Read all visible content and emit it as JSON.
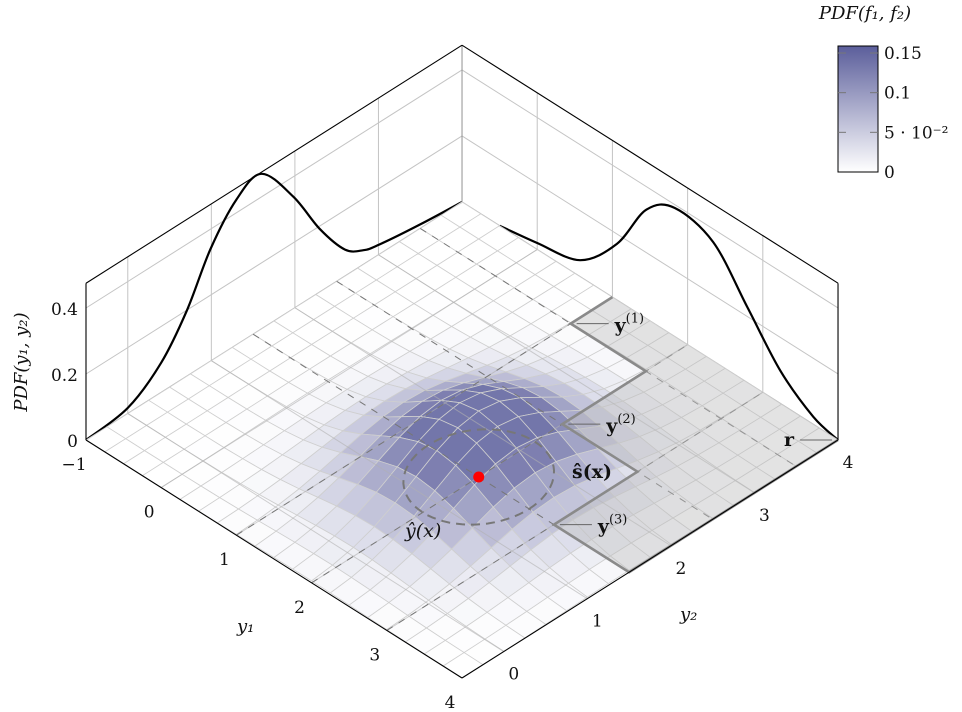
{
  "chart_data": {
    "type": "surface3d",
    "title": "",
    "axes": {
      "y1": {
        "label": "y₁",
        "range": [
          -1,
          4
        ],
        "ticks": [
          -1,
          0,
          1,
          2,
          3,
          4
        ],
        "tick_labels": [
          "−1",
          "0",
          "1",
          "2",
          "3",
          "4"
        ]
      },
      "y2": {
        "label": "y₂",
        "range": [
          -0.5,
          4
        ],
        "ticks": [
          0,
          1,
          2,
          3,
          4
        ],
        "tick_labels": [
          "0",
          "1",
          "2",
          "3",
          "4"
        ]
      },
      "z": {
        "label": "PDF(y₁, y₂)",
        "range": [
          0,
          0.475
        ],
        "ticks": [
          0,
          0.2,
          0.4
        ],
        "tick_labels": [
          "0",
          "0.2",
          "0.4"
        ]
      }
    },
    "grid": true,
    "colorbar": {
      "title": "PDF(f₁, f₂)",
      "range": [
        0,
        0.15
      ],
      "ticks": [
        0,
        0.05,
        0.1,
        0.15
      ],
      "tick_labels": [
        "0",
        "5 · 10⁻²",
        "0.1",
        "0.15"
      ],
      "color_low": "#ffffff",
      "color_high": "#5b5e9b",
      "placement": "top-right"
    },
    "surface": {
      "kind": "bivariate-gaussian",
      "mean": [
        2,
        1.5
      ],
      "sigma": 0.75,
      "peak": 0.2,
      "grid_step": 0.25
    },
    "marginal_y2": {
      "name": "marginal on y₁ = −1 wall",
      "points": [
        [
          -0.5,
          0
        ],
        [
          0,
          0.017
        ],
        [
          0.4,
          0.09
        ],
        [
          0.71,
          0.2
        ],
        [
          0.99,
          0.34
        ],
        [
          1.3,
          0.44
        ],
        [
          1.6,
          0.47
        ],
        [
          1.98,
          0.34
        ],
        [
          2.3,
          0.19
        ],
        [
          2.6,
          0.08
        ],
        [
          2.82,
          0.043
        ],
        [
          3.0,
          0.03
        ],
        [
          3.5,
          0.012
        ],
        [
          4,
          0
        ]
      ]
    },
    "marginal_y1": {
      "name": "marginal on y₂ = 4 wall",
      "points": [
        [
          -0.5,
          0
        ],
        [
          0,
          0.02
        ],
        [
          0.57,
          0.05
        ],
        [
          1.06,
          0.17
        ],
        [
          1.45,
          0.33
        ],
        [
          1.83,
          0.39
        ],
        [
          2.34,
          0.36
        ],
        [
          2.79,
          0.23
        ],
        [
          3.23,
          0.1
        ],
        [
          3.67,
          0.023
        ],
        [
          4,
          0
        ]
      ]
    },
    "dominated_region": [
      [
        1,
        4
      ],
      [
        1,
        3.5
      ],
      [
        2,
        3.5
      ],
      [
        2,
        2.5
      ],
      [
        3,
        2.5
      ],
      [
        3,
        1.5
      ],
      [
        4,
        1.5
      ],
      [
        4,
        4
      ]
    ],
    "dashed_lines": {
      "y1": [
        1,
        2,
        3
      ],
      "y2": [
        1.5,
        2.5,
        3.5
      ]
    },
    "prediction_point": {
      "y1": 2,
      "y2": 1.5,
      "color": "#ff0000"
    },
    "uncertainty_circle": {
      "center": [
        2,
        1.5
      ],
      "radius": 0.67
    },
    "annotations": [
      {
        "id": "y1pt",
        "text": "y",
        "sup": "(1)",
        "at": [
          1,
          3.5
        ]
      },
      {
        "id": "y2pt",
        "text": "y",
        "sup": "(2)",
        "at": [
          2,
          2.5
        ]
      },
      {
        "id": "y3pt",
        "text": "y",
        "sup": "(3)",
        "at": [
          3,
          1.5
        ]
      },
      {
        "id": "ref",
        "text": "r",
        "sup": "",
        "at": [
          4,
          4
        ]
      },
      {
        "id": "shat",
        "text": "ŝ(x)",
        "sup": "",
        "at": [
          3,
          2.0
        ]
      },
      {
        "id": "yhat",
        "text": "ŷ(x)",
        "sup": "",
        "at": [
          2.6,
          0.9
        ]
      }
    ]
  }
}
